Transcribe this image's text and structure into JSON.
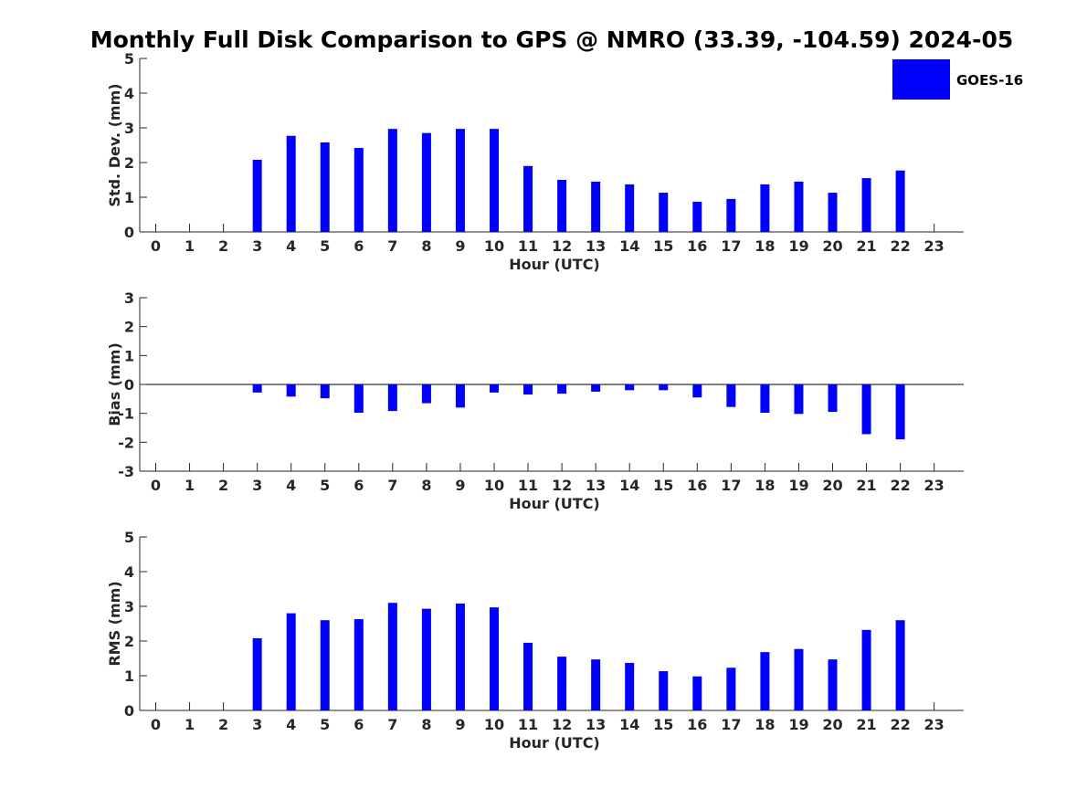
{
  "title": "Monthly Full Disk Comparison to GPS @ NMRO (33.39, -104.59) 2024-05",
  "legend": {
    "label": "GOES-16",
    "color": "#0000ff",
    "placement": "top-right"
  },
  "chart_data": [
    {
      "type": "bar",
      "ylabel": "Std. Dev. (mm)",
      "xlabel": "Hour (UTC)",
      "ylim": [
        0,
        5
      ],
      "yticks": [
        0,
        1,
        2,
        3,
        4,
        5
      ],
      "categories": [
        "0",
        "1",
        "2",
        "3",
        "4",
        "5",
        "6",
        "7",
        "8",
        "9",
        "10",
        "11",
        "12",
        "13",
        "14",
        "15",
        "16",
        "17",
        "18",
        "19",
        "20",
        "21",
        "22",
        "23"
      ],
      "series": [
        {
          "name": "GOES-16",
          "color": "#0000ff",
          "values": [
            null,
            null,
            null,
            2.08,
            2.77,
            2.58,
            2.42,
            2.97,
            2.85,
            2.97,
            2.97,
            1.9,
            1.5,
            1.45,
            1.37,
            1.13,
            0.87,
            0.95,
            1.37,
            1.45,
            1.13,
            1.55,
            1.77,
            null
          ]
        }
      ],
      "grid": false
    },
    {
      "type": "bar",
      "ylabel": "Bias (mm)",
      "xlabel": "Hour (UTC)",
      "ylim": [
        -3,
        3
      ],
      "yticks": [
        -3,
        -2,
        -1,
        0,
        1,
        2,
        3
      ],
      "zero_line": true,
      "categories": [
        "0",
        "1",
        "2",
        "3",
        "4",
        "5",
        "6",
        "7",
        "8",
        "9",
        "10",
        "11",
        "12",
        "13",
        "14",
        "15",
        "16",
        "17",
        "18",
        "19",
        "20",
        "21",
        "22",
        "23"
      ],
      "series": [
        {
          "name": "GOES-16",
          "color": "#0000ff",
          "values": [
            null,
            null,
            null,
            -0.28,
            -0.42,
            -0.48,
            -0.98,
            -0.92,
            -0.65,
            -0.8,
            -0.28,
            -0.35,
            -0.32,
            -0.25,
            -0.2,
            -0.2,
            -0.45,
            -0.78,
            -0.98,
            -1.02,
            -0.95,
            -1.72,
            -1.9,
            null
          ]
        }
      ],
      "grid": false
    },
    {
      "type": "bar",
      "ylabel": "RMS (mm)",
      "xlabel": "Hour (UTC)",
      "ylim": [
        0,
        5
      ],
      "yticks": [
        0,
        1,
        2,
        3,
        4,
        5
      ],
      "categories": [
        "0",
        "1",
        "2",
        "3",
        "4",
        "5",
        "6",
        "7",
        "8",
        "9",
        "10",
        "11",
        "12",
        "13",
        "14",
        "15",
        "16",
        "17",
        "18",
        "19",
        "20",
        "21",
        "22",
        "23"
      ],
      "series": [
        {
          "name": "GOES-16",
          "color": "#0000ff",
          "values": [
            null,
            null,
            null,
            2.08,
            2.8,
            2.6,
            2.63,
            3.1,
            2.93,
            3.08,
            2.97,
            1.95,
            1.55,
            1.47,
            1.37,
            1.13,
            0.98,
            1.23,
            1.68,
            1.77,
            1.47,
            2.32,
            2.6,
            null
          ]
        }
      ],
      "grid": false
    }
  ]
}
